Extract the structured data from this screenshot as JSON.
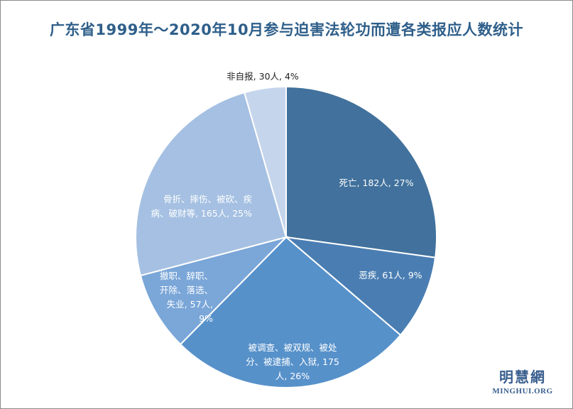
{
  "chart_data": {
    "type": "pie",
    "title": "广东省1999年～2020年10月参与迫害法轮功而遭各类报应人数统计",
    "slices": [
      {
        "label": "死亡, 182人, 27%",
        "lines": [
          "死亡, 182人, 27%"
        ],
        "value": 182,
        "percent": 27,
        "color": "#41719c"
      },
      {
        "label": "恶疾, 61人, 9%",
        "lines": [
          "恶疾, 61人, 9%"
        ],
        "value": 61,
        "percent": 9,
        "color": "#4a7eb3"
      },
      {
        "label": "被调查、被双规、被处分、被逮捕、入狱, 175人, 26%",
        "lines": [
          "被调查、被双规、被处",
          "分、被逮捕、入狱, 175",
          "人, 26%"
        ],
        "value": 175,
        "percent": 26,
        "color": "#5791ca"
      },
      {
        "label": "撤职、辞职、开除、落选、失业, 57人, 9%",
        "lines": [
          "撤职、辞职、",
          "开除、落选、",
          "失业, 57人,",
          "9%"
        ],
        "value": 57,
        "percent": 9,
        "color": "#7aa6d8"
      },
      {
        "label": "骨折、摔伤、被砍、疾病、破财等, 165人, 25%",
        "lines": [
          "骨折、摔伤、被砍、疾",
          "病、破财等, 165人, 25%"
        ],
        "value": 165,
        "percent": 25,
        "color": "#a5c0e2"
      },
      {
        "label": "非自报, 30人, 4%",
        "lines": [
          "非自报, 30人, 4%"
        ],
        "value": 30,
        "percent": 4,
        "color": "#c5d5ec"
      }
    ]
  },
  "watermark": {
    "chinese": "明慧網",
    "english": "MINGHUI.ORG"
  }
}
